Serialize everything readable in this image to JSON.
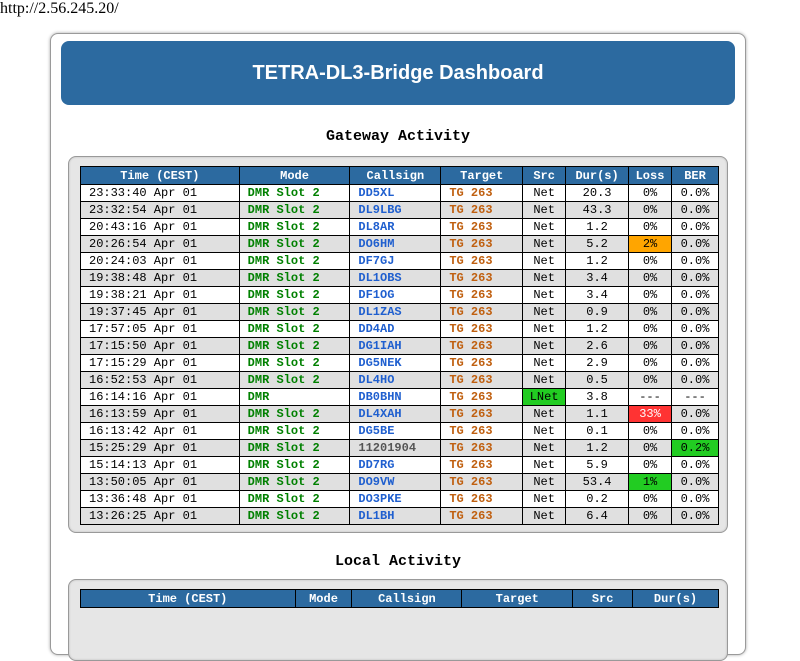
{
  "url": "http://2.56.245.20/",
  "title": "TETRA-DL3-Bridge Dashboard",
  "gateway": {
    "title": "Gateway Activity",
    "headers": [
      "Time (CEST)",
      "Mode",
      "Callsign",
      "Target",
      "Src",
      "Dur(s)",
      "Loss",
      "BER"
    ],
    "rows": [
      {
        "time": "23:33:40 Apr 01",
        "mode": "DMR Slot 2",
        "call": "DD5XL",
        "target": "TG 263",
        "src": "Net",
        "dur": "20.3",
        "loss": "0%",
        "ber": "0.0%"
      },
      {
        "time": "23:32:54 Apr 01",
        "mode": "DMR Slot 2",
        "call": "DL9LBG",
        "target": "TG 263",
        "src": "Net",
        "dur": "43.3",
        "loss": "0%",
        "ber": "0.0%"
      },
      {
        "time": "20:43:16 Apr 01",
        "mode": "DMR Slot 2",
        "call": "DL8AR",
        "target": "TG 263",
        "src": "Net",
        "dur": "1.2",
        "loss": "0%",
        "ber": "0.0%"
      },
      {
        "time": "20:26:54 Apr 01",
        "mode": "DMR Slot 2",
        "call": "DO6HM",
        "target": "TG 263",
        "src": "Net",
        "dur": "5.2",
        "loss": "2%",
        "ber": "0.0%",
        "lossColor": "#ffa500"
      },
      {
        "time": "20:24:03 Apr 01",
        "mode": "DMR Slot 2",
        "call": "DF7GJ",
        "target": "TG 263",
        "src": "Net",
        "dur": "1.2",
        "loss": "0%",
        "ber": "0.0%"
      },
      {
        "time": "19:38:48 Apr 01",
        "mode": "DMR Slot 2",
        "call": "DL1OBS",
        "target": "TG 263",
        "src": "Net",
        "dur": "3.4",
        "loss": "0%",
        "ber": "0.0%"
      },
      {
        "time": "19:38:21 Apr 01",
        "mode": "DMR Slot 2",
        "call": "DF1OG",
        "target": "TG 263",
        "src": "Net",
        "dur": "3.4",
        "loss": "0%",
        "ber": "0.0%"
      },
      {
        "time": "19:37:45 Apr 01",
        "mode": "DMR Slot 2",
        "call": "DL1ZAS",
        "target": "TG 263",
        "src": "Net",
        "dur": "0.9",
        "loss": "0%",
        "ber": "0.0%"
      },
      {
        "time": "17:57:05 Apr 01",
        "mode": "DMR Slot 2",
        "call": "DD4AD",
        "target": "TG 263",
        "src": "Net",
        "dur": "1.2",
        "loss": "0%",
        "ber": "0.0%"
      },
      {
        "time": "17:15:50 Apr 01",
        "mode": "DMR Slot 2",
        "call": "DG1IAH",
        "target": "TG 263",
        "src": "Net",
        "dur": "2.6",
        "loss": "0%",
        "ber": "0.0%"
      },
      {
        "time": "17:15:29 Apr 01",
        "mode": "DMR Slot 2",
        "call": "DG5NEK",
        "target": "TG 263",
        "src": "Net",
        "dur": "2.9",
        "loss": "0%",
        "ber": "0.0%"
      },
      {
        "time": "16:52:53 Apr 01",
        "mode": "DMR Slot 2",
        "call": "DL4HO",
        "target": "TG 263",
        "src": "Net",
        "dur": "0.5",
        "loss": "0%",
        "ber": "0.0%"
      },
      {
        "time": "16:14:16 Apr 01",
        "mode": "DMR",
        "call": "DB0BHN",
        "target": "TG 263",
        "src": "LNet",
        "dur": "3.8",
        "loss": "---",
        "ber": "---",
        "srcColor": "#22cc22"
      },
      {
        "time": "16:13:59 Apr 01",
        "mode": "DMR Slot 2",
        "call": "DL4XAH",
        "target": "TG 263",
        "src": "Net",
        "dur": "1.1",
        "loss": "33%",
        "ber": "0.0%",
        "lossColor": "#ff3333",
        "lossText": "#ffffff"
      },
      {
        "time": "16:13:42 Apr 01",
        "mode": "DMR Slot 2",
        "call": "DG5BE",
        "target": "TG 263",
        "src": "Net",
        "dur": "0.1",
        "loss": "0%",
        "ber": "0.0%"
      },
      {
        "time": "15:25:29 Apr 01",
        "mode": "DMR Slot 2",
        "call": "11201904",
        "target": "TG 263",
        "src": "Net",
        "dur": "1.2",
        "loss": "0%",
        "ber": "0.2%",
        "callNumeric": true,
        "berColor": "#22cc22"
      },
      {
        "time": "15:14:13 Apr 01",
        "mode": "DMR Slot 2",
        "call": "DD7RG",
        "target": "TG 263",
        "src": "Net",
        "dur": "5.9",
        "loss": "0%",
        "ber": "0.0%"
      },
      {
        "time": "13:50:05 Apr 01",
        "mode": "DMR Slot 2",
        "call": "DO9VW",
        "target": "TG 263",
        "src": "Net",
        "dur": "53.4",
        "loss": "1%",
        "ber": "0.0%",
        "lossColor": "#22cc22"
      },
      {
        "time": "13:36:48 Apr 01",
        "mode": "DMR Slot 2",
        "call": "DO3PKE",
        "target": "TG 263",
        "src": "Net",
        "dur": "0.2",
        "loss": "0%",
        "ber": "0.0%"
      },
      {
        "time": "13:26:25 Apr 01",
        "mode": "DMR Slot 2",
        "call": "DL1BH",
        "target": "TG 263",
        "src": "Net",
        "dur": "6.4",
        "loss": "0%",
        "ber": "0.0%"
      }
    ]
  },
  "local": {
    "title": "Local Activity",
    "headers": [
      "Time (CEST)",
      "Mode",
      "Callsign",
      "Target",
      "Src",
      "Dur(s)"
    ]
  }
}
